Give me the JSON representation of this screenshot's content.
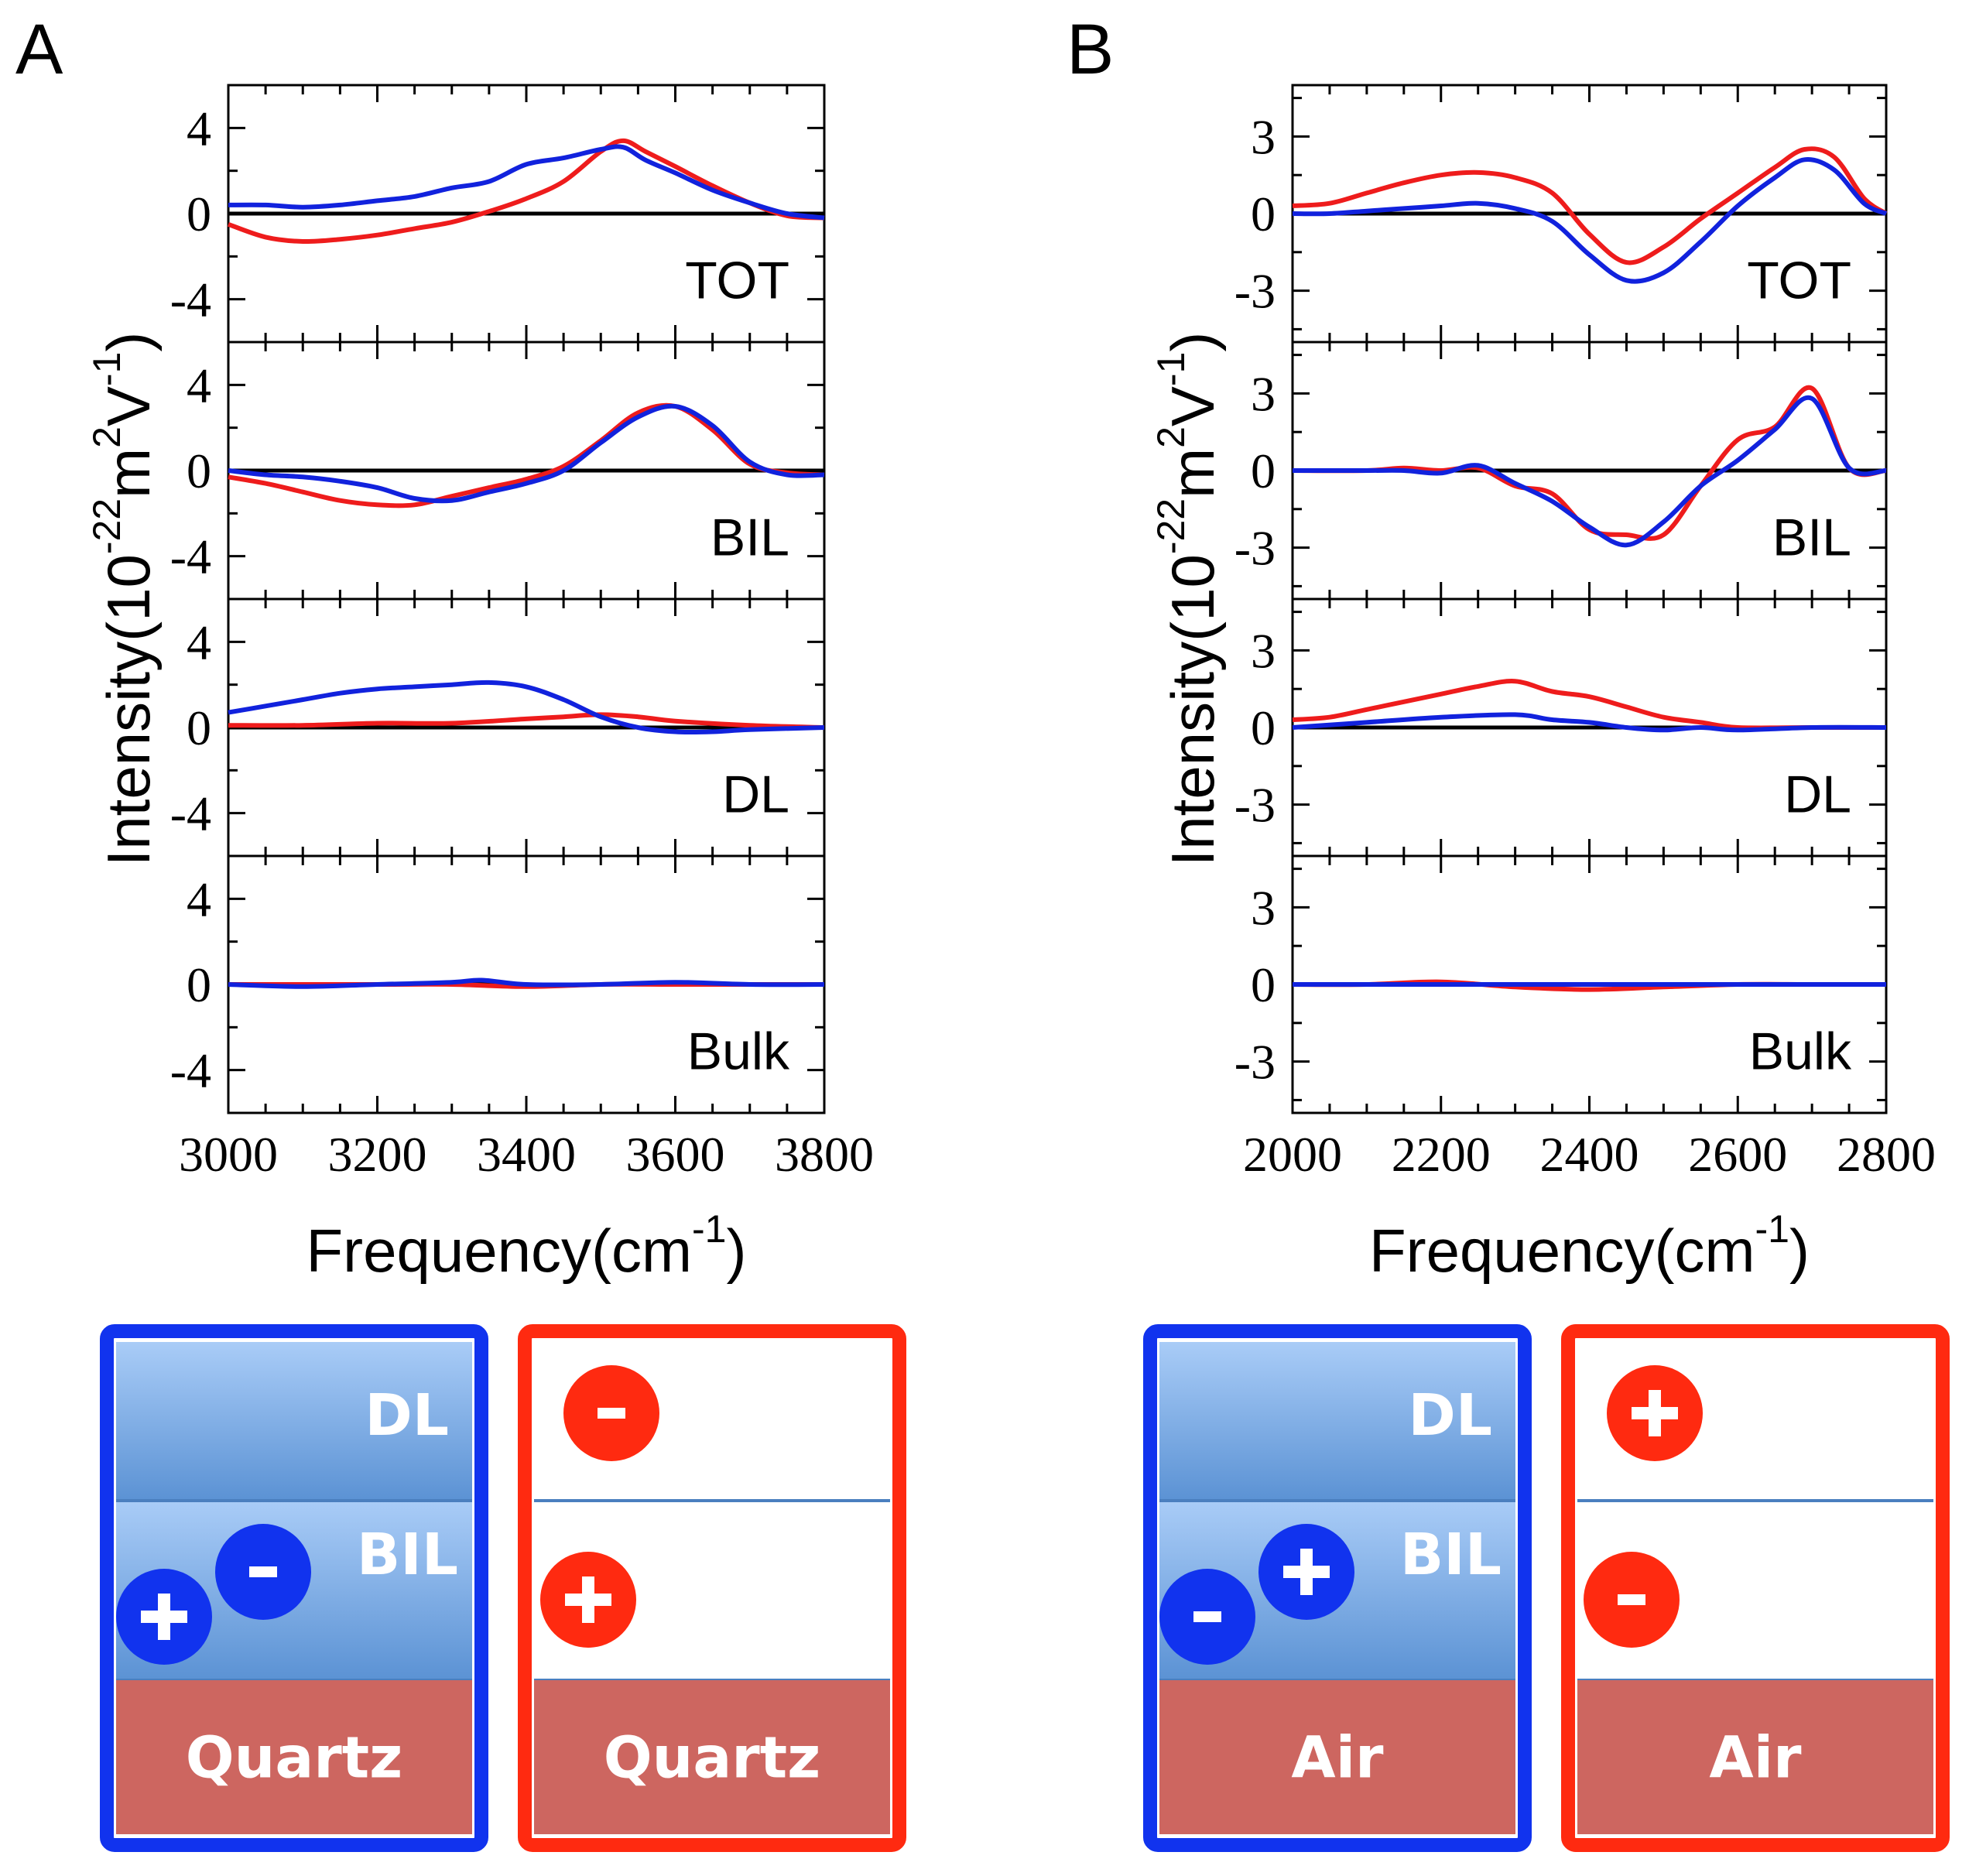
{
  "figure": {
    "panels": [
      {
        "letter": "A",
        "substrate": "Quartz",
        "colors": {
          "red": "#ee1c1c",
          "blue": "#1122dd"
        }
      },
      {
        "letter": "B",
        "substrate": "Air",
        "colors": {
          "red": "#ee1c1c",
          "blue": "#1122dd"
        }
      }
    ],
    "ylabel_main": "Intensity(10",
    "ylabel_sup1": "-22",
    "ylabel_mid": "m",
    "ylabel_sup2": "2",
    "ylabel_mid2": "V",
    "ylabel_sup3": "-1",
    "ylabel_end": ")",
    "xlabel_main": "Frequency(cm",
    "xlabel_sup": "-1",
    "xlabel_end": ")"
  },
  "chart_data": [
    {
      "type": "line",
      "panel": "A",
      "xlim": [
        3000,
        3800
      ],
      "xticks": [
        "3000",
        "3200",
        "3400",
        "3600",
        "3800"
      ],
      "ylim": [
        -6,
        6
      ],
      "yticks": [
        "4",
        "0",
        "-4"
      ],
      "ytick_values": [
        4,
        0,
        -4
      ],
      "subplots": [
        {
          "label": "TOT",
          "series": [
            {
              "name": "red",
              "color": "#ee1c1c",
              "x": [
                3000,
                3050,
                3100,
                3150,
                3200,
                3250,
                3300,
                3350,
                3400,
                3450,
                3500,
                3530,
                3560,
                3600,
                3650,
                3700,
                3750,
                3800
              ],
              "y": [
                -0.5,
                -1.1,
                -1.3,
                -1.2,
                -1.0,
                -0.7,
                -0.4,
                0.1,
                0.7,
                1.5,
                2.9,
                3.4,
                2.9,
                2.2,
                1.3,
                0.5,
                -0.1,
                -0.2
              ]
            },
            {
              "name": "blue",
              "color": "#1122dd",
              "x": [
                3000,
                3050,
                3100,
                3150,
                3200,
                3250,
                3300,
                3350,
                3400,
                3450,
                3500,
                3530,
                3560,
                3600,
                3650,
                3700,
                3750,
                3800
              ],
              "y": [
                0.4,
                0.4,
                0.3,
                0.4,
                0.6,
                0.8,
                1.2,
                1.5,
                2.3,
                2.6,
                3.0,
                3.1,
                2.5,
                1.9,
                1.1,
                0.5,
                0.0,
                -0.2
              ]
            }
          ]
        },
        {
          "label": "BIL",
          "series": [
            {
              "name": "red",
              "color": "#ee1c1c",
              "x": [
                3000,
                3050,
                3100,
                3150,
                3200,
                3250,
                3300,
                3350,
                3400,
                3450,
                3500,
                3550,
                3600,
                3650,
                3700,
                3750,
                3800
              ],
              "y": [
                -0.3,
                -0.6,
                -1.0,
                -1.4,
                -1.6,
                -1.6,
                -1.2,
                -0.8,
                -0.4,
                0.2,
                1.4,
                2.7,
                3.0,
                1.9,
                0.3,
                -0.1,
                -0.2
              ]
            },
            {
              "name": "blue",
              "color": "#1122dd",
              "x": [
                3000,
                3050,
                3100,
                3150,
                3200,
                3250,
                3300,
                3350,
                3400,
                3450,
                3500,
                3550,
                3600,
                3650,
                3700,
                3750,
                3800
              ],
              "y": [
                0.0,
                -0.2,
                -0.3,
                -0.5,
                -0.8,
                -1.3,
                -1.4,
                -1.0,
                -0.6,
                0.0,
                1.3,
                2.5,
                3.0,
                2.1,
                0.4,
                -0.2,
                -0.2
              ]
            }
          ]
        },
        {
          "label": "DL",
          "series": [
            {
              "name": "red",
              "color": "#ee1c1c",
              "x": [
                3000,
                3100,
                3200,
                3300,
                3400,
                3450,
                3500,
                3550,
                3600,
                3700,
                3800
              ],
              "y": [
                0.1,
                0.1,
                0.2,
                0.2,
                0.4,
                0.5,
                0.6,
                0.5,
                0.3,
                0.1,
                0.0
              ]
            },
            {
              "name": "blue",
              "color": "#1122dd",
              "x": [
                3000,
                3050,
                3100,
                3150,
                3200,
                3250,
                3300,
                3350,
                3400,
                3450,
                3500,
                3550,
                3600,
                3650,
                3700,
                3800
              ],
              "y": [
                0.7,
                1.0,
                1.3,
                1.6,
                1.8,
                1.9,
                2.0,
                2.1,
                1.9,
                1.3,
                0.5,
                0.0,
                -0.2,
                -0.2,
                -0.1,
                0.0
              ]
            }
          ]
        },
        {
          "label": "Bulk",
          "series": [
            {
              "name": "red",
              "color": "#ee1c1c",
              "x": [
                3000,
                3200,
                3300,
                3400,
                3500,
                3600,
                3700,
                3800
              ],
              "y": [
                0.0,
                0.0,
                0.0,
                -0.1,
                0.0,
                0.0,
                0.0,
                0.0
              ]
            },
            {
              "name": "blue",
              "color": "#1122dd",
              "x": [
                3000,
                3100,
                3200,
                3300,
                3340,
                3400,
                3500,
                3600,
                3700,
                3800
              ],
              "y": [
                0.0,
                -0.1,
                0.0,
                0.1,
                0.2,
                0.0,
                0.0,
                0.1,
                0.0,
                0.0
              ]
            }
          ]
        }
      ]
    },
    {
      "type": "line",
      "panel": "B",
      "xlim": [
        2000,
        2800
      ],
      "xticks": [
        "2000",
        "2200",
        "2400",
        "2600",
        "2800"
      ],
      "ylim": [
        -5,
        5
      ],
      "yticks": [
        "3",
        "0",
        "-3"
      ],
      "ytick_values": [
        3,
        0,
        -3
      ],
      "subplots": [
        {
          "label": "TOT",
          "series": [
            {
              "name": "red",
              "color": "#ee1c1c",
              "x": [
                2000,
                2050,
                2100,
                2150,
                2200,
                2250,
                2300,
                2350,
                2400,
                2450,
                2500,
                2550,
                2600,
                2650,
                2690,
                2730,
                2770,
                2800
              ],
              "y": [
                0.3,
                0.4,
                0.8,
                1.2,
                1.5,
                1.6,
                1.4,
                0.8,
                -0.8,
                -1.9,
                -1.3,
                -0.2,
                0.8,
                1.8,
                2.5,
                2.2,
                0.6,
                0.0
              ]
            },
            {
              "name": "blue",
              "color": "#1122dd",
              "x": [
                2000,
                2050,
                2100,
                2150,
                2200,
                2250,
                2300,
                2350,
                2400,
                2450,
                2500,
                2550,
                2600,
                2650,
                2690,
                2730,
                2770,
                2800
              ],
              "y": [
                0.0,
                0.0,
                0.1,
                0.2,
                0.3,
                0.4,
                0.2,
                -0.3,
                -1.6,
                -2.6,
                -2.3,
                -1.1,
                0.3,
                1.4,
                2.1,
                1.7,
                0.4,
                0.0
              ]
            }
          ]
        },
        {
          "label": "BIL",
          "series": [
            {
              "name": "red",
              "color": "#ee1c1c",
              "x": [
                2000,
                2100,
                2150,
                2200,
                2250,
                2300,
                2350,
                2400,
                2450,
                2500,
                2550,
                2600,
                2650,
                2700,
                2750,
                2800
              ],
              "y": [
                0.0,
                0.0,
                0.1,
                0.0,
                0.1,
                -0.6,
                -0.9,
                -2.3,
                -2.5,
                -2.5,
                -0.6,
                1.2,
                1.7,
                3.2,
                0.1,
                0.0
              ]
            },
            {
              "name": "blue",
              "color": "#1122dd",
              "x": [
                2000,
                2100,
                2150,
                2200,
                2250,
                2300,
                2350,
                2400,
                2450,
                2500,
                2550,
                2600,
                2650,
                2700,
                2750,
                2800
              ],
              "y": [
                0.0,
                0.0,
                0.0,
                -0.1,
                0.2,
                -0.5,
                -1.2,
                -2.2,
                -2.9,
                -2.0,
                -0.6,
                0.4,
                1.6,
                2.8,
                0.1,
                0.0
              ]
            }
          ]
        },
        {
          "label": "DL",
          "series": [
            {
              "name": "red",
              "color": "#ee1c1c",
              "x": [
                2000,
                2050,
                2100,
                2150,
                2200,
                2250,
                2300,
                2350,
                2400,
                2450,
                2500,
                2550,
                2600,
                2700,
                2800
              ],
              "y": [
                0.3,
                0.4,
                0.7,
                1.0,
                1.3,
                1.6,
                1.8,
                1.4,
                1.2,
                0.8,
                0.4,
                0.2,
                0.0,
                0.0,
                0.0
              ]
            },
            {
              "name": "blue",
              "color": "#1122dd",
              "x": [
                2000,
                2100,
                2200,
                2300,
                2350,
                2400,
                2450,
                2500,
                2550,
                2600,
                2700,
                2800
              ],
              "y": [
                0.0,
                0.2,
                0.4,
                0.5,
                0.3,
                0.2,
                0.0,
                -0.1,
                0.0,
                -0.1,
                0.0,
                0.0
              ]
            }
          ]
        },
        {
          "label": "Bulk",
          "series": [
            {
              "name": "red",
              "color": "#ee1c1c",
              "x": [
                2000,
                2100,
                2200,
                2300,
                2400,
                2500,
                2600,
                2700,
                2800
              ],
              "y": [
                0.0,
                0.0,
                0.1,
                -0.1,
                -0.2,
                -0.1,
                0.0,
                0.0,
                0.0
              ]
            },
            {
              "name": "blue",
              "color": "#1122dd",
              "x": [
                2000,
                2200,
                2400,
                2600,
                2800
              ],
              "y": [
                0.0,
                0.0,
                0.0,
                0.0,
                0.0
              ]
            }
          ]
        }
      ]
    }
  ],
  "schematics": [
    {
      "panel": "A",
      "boxes": [
        {
          "border": "#1133ee",
          "dl_label": "DL",
          "bil_label": "BIL",
          "substrate": "Quartz",
          "filled": true,
          "ions": [
            {
              "layer": "bil",
              "sign": "+",
              "color": "#1133ee"
            },
            {
              "layer": "bil",
              "sign": "-",
              "color": "#1133ee"
            }
          ]
        },
        {
          "border": "#ff2a10",
          "dl_label": "",
          "bil_label": "",
          "substrate": "Quartz",
          "filled": false,
          "ions": [
            {
              "layer": "dl",
              "sign": "-",
              "color": "#ff2a10"
            },
            {
              "layer": "bil",
              "sign": "+",
              "color": "#ff2a10"
            }
          ]
        }
      ]
    },
    {
      "panel": "B",
      "boxes": [
        {
          "border": "#1133ee",
          "dl_label": "DL",
          "bil_label": "BIL",
          "substrate": "Air",
          "filled": true,
          "ions": [
            {
              "layer": "bil",
              "sign": "-",
              "color": "#1133ee"
            },
            {
              "layer": "bil",
              "sign": "+",
              "color": "#1133ee"
            }
          ]
        },
        {
          "border": "#ff2a10",
          "dl_label": "",
          "bil_label": "",
          "substrate": "Air",
          "filled": false,
          "ions": [
            {
              "layer": "dl",
              "sign": "+",
              "color": "#ff2a10"
            },
            {
              "layer": "bil",
              "sign": "-",
              "color": "#ff2a10"
            }
          ]
        }
      ]
    }
  ]
}
